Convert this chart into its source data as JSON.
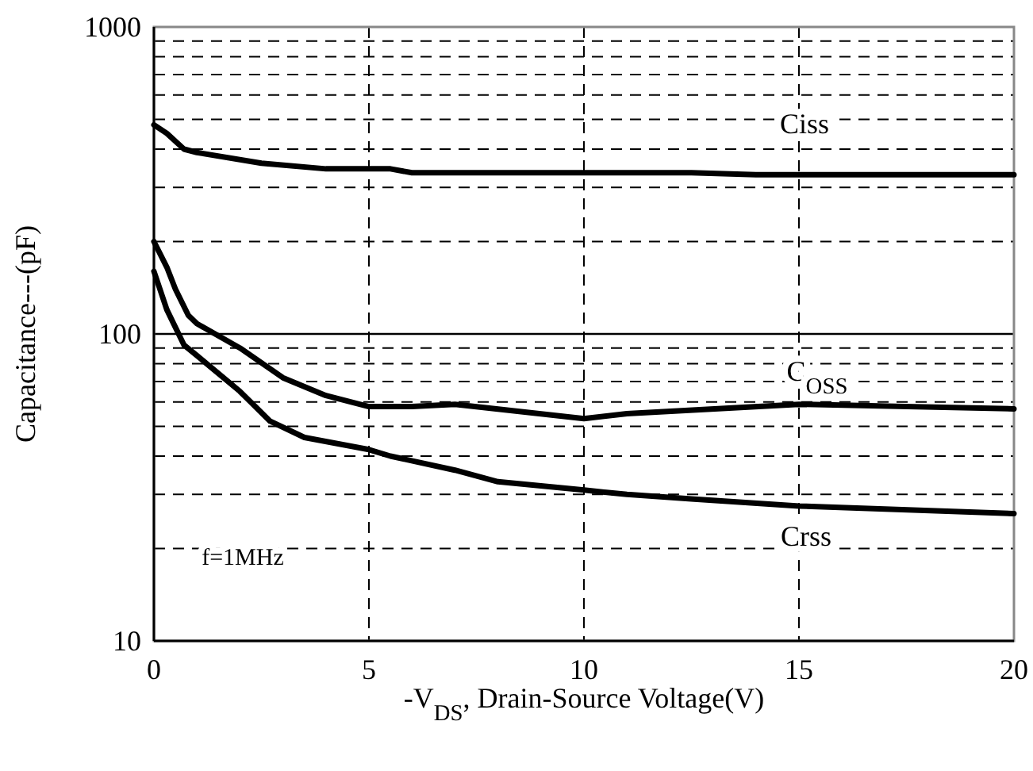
{
  "chart_data": {
    "type": "line",
    "xlabel": "-V$_{DS}$, Drain-Source Voltage(V)",
    "ylabel": "Capacitance---(pF)",
    "log": "y",
    "grid": true,
    "line_style": "solid",
    "xlim": [
      0,
      20
    ],
    "xticks": [
      0,
      5,
      10,
      15,
      20
    ],
    "ylim": [
      10,
      1000
    ],
    "yticks": [
      10,
      {
        "value": 20,
        "label": null
      },
      {
        "value": 30,
        "label": null
      },
      {
        "value": 40,
        "label": null
      },
      {
        "value": 50,
        "label": null
      },
      {
        "value": 60,
        "label": null
      },
      {
        "value": 70,
        "label": null
      },
      {
        "value": 80,
        "label": null
      },
      {
        "value": 90,
        "label": null
      },
      100,
      {
        "value": 200,
        "label": null
      },
      {
        "value": 300,
        "label": null
      },
      {
        "value": 400,
        "label": null
      },
      {
        "value": 500,
        "label": null
      },
      {
        "value": 600,
        "label": null
      },
      {
        "value": 700,
        "label": null
      },
      {
        "value": 800,
        "label": null
      },
      {
        "value": 900,
        "label": null
      },
      1000
    ],
    "series": [
      {
        "color": "#000000",
        "x": [
          0,
          0.3,
          0.7,
          1,
          2.5,
          4,
          5.5,
          6,
          12.5,
          14,
          20
        ],
        "values": [
          480,
          450,
          400,
          390,
          360,
          345,
          345,
          335,
          335,
          330,
          330
        ]
      },
      {
        "color": "#000000",
        "x": [
          0,
          0.3,
          0.5,
          0.8,
          1,
          2,
          3,
          4,
          5,
          6,
          7,
          10,
          11,
          15,
          20
        ],
        "values": [
          200,
          165,
          140,
          115,
          108,
          90,
          72,
          63,
          58,
          58,
          59,
          53,
          55,
          59,
          57
        ]
      },
      {
        "color": "#000000",
        "x": [
          0,
          0.3,
          0.7,
          1,
          2,
          2.7,
          3.5,
          5,
          5.5,
          7,
          8,
          10,
          11,
          12.5,
          15,
          20
        ],
        "values": [
          160,
          120,
          92,
          85,
          65,
          52,
          46,
          42,
          40,
          36,
          33,
          31,
          30,
          29,
          27.5,
          26
        ]
      }
    ],
    "ref_lines": [
      {
        "axis": "y",
        "value": 100
      }
    ],
    "annotations": [
      "Ciss",
      "C$_{OSS}$",
      "Crss",
      "f=1MHz"
    ]
  }
}
